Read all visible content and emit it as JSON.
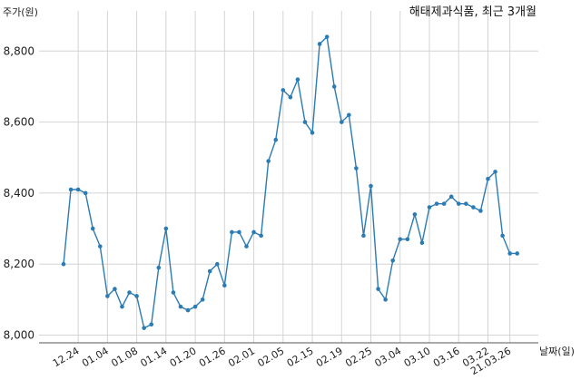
{
  "chart_data": {
    "type": "line",
    "title": "해태제과식품, 최근 3개월",
    "ylabel": "주가(원)",
    "xlabel": "날짜(일)",
    "ylim": [
      8000,
      8850
    ],
    "yticks": [
      8000,
      8200,
      8400,
      8600,
      8800
    ],
    "ytick_labels": [
      "8,000",
      "8,200",
      "8,400",
      "8,600",
      "8,800"
    ],
    "xtick_labels": [
      "12.24",
      "01.04",
      "01.08",
      "01.14",
      "01.20",
      "01.26",
      "02.01",
      "02.05",
      "02.15",
      "02.19",
      "02.25",
      "03.04",
      "03.10",
      "03.16",
      "03.22",
      "21.03.26"
    ],
    "xtick_index": [
      2,
      6,
      10,
      14,
      18,
      22,
      26,
      30,
      34,
      38,
      42,
      46,
      50,
      54,
      58,
      61
    ],
    "grid": true,
    "color": "#2b7bb4",
    "series": [
      {
        "values": [
          8200,
          8410,
          8410,
          8400,
          8300,
          8250,
          8110,
          8130,
          8080,
          8120,
          8110,
          8020,
          8030,
          8190,
          8300,
          8120,
          8080,
          8070,
          8080,
          8100,
          8180,
          8200,
          8140,
          8290,
          8290,
          8250,
          8290,
          8280,
          8490,
          8550,
          8690,
          8670,
          8720,
          8600,
          8570,
          8820,
          8840,
          8700,
          8600,
          8620,
          8470,
          8280,
          8420,
          8130,
          8100,
          8210,
          8270,
          8270,
          8340,
          8260,
          8360,
          8370,
          8370,
          8390,
          8370,
          8370,
          8360,
          8350,
          8440,
          8460,
          8280,
          8230,
          8230
        ]
      }
    ]
  }
}
